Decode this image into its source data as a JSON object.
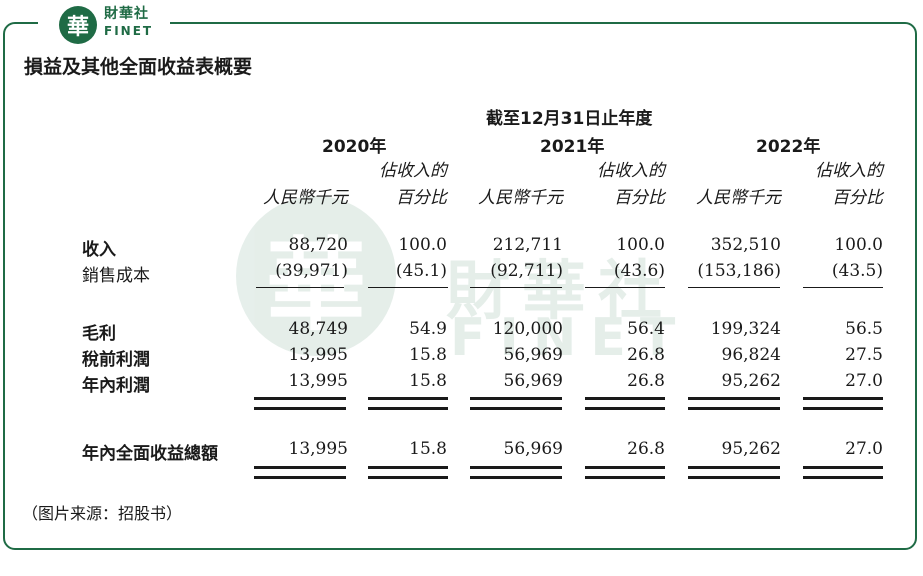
{
  "brand": {
    "cn": "財華社",
    "en": "FINET",
    "badge_char": "華"
  },
  "title": "損益及其他全面收益表概要",
  "period_header": "截至12月31日止年度",
  "years": [
    "2020年",
    "2021年",
    "2022年"
  ],
  "col_headers": {
    "amount": "人民幣千元",
    "pct_line1": "佔收入的",
    "pct_line2": "百分比"
  },
  "rows": [
    {
      "label": "收入",
      "values": [
        "88,720",
        "100.0",
        "212,711",
        "100.0",
        "352,510",
        "100.0"
      ]
    },
    {
      "label": "銷售成本",
      "values": [
        "(39,971)",
        "(45.1)",
        "(92,711)",
        "(43.6)",
        "(153,186)",
        "(43.5)"
      ]
    },
    {
      "label": "毛利",
      "values": [
        "48,749",
        "54.9",
        "120,000",
        "56.4",
        "199,324",
        "56.5"
      ]
    },
    {
      "label": "稅前利潤",
      "values": [
        "13,995",
        "15.8",
        "56,969",
        "26.8",
        "96,824",
        "27.5"
      ]
    },
    {
      "label": "年內利潤",
      "values": [
        "13,995",
        "15.8",
        "56,969",
        "26.8",
        "95,262",
        "27.0"
      ]
    },
    {
      "label": "年內全面收益總額",
      "values": [
        "13,995",
        "15.8",
        "56,969",
        "26.8",
        "95,262",
        "27.0"
      ]
    }
  ],
  "source": "（图片来源：招股书）",
  "colors": {
    "brand_green": "#1f6b45",
    "text": "#1a1a1a"
  }
}
